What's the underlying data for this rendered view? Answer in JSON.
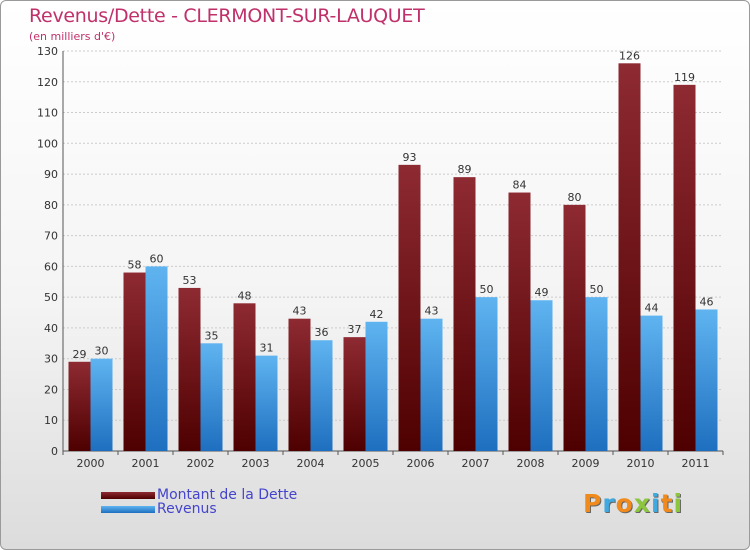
{
  "colors": {
    "debt": "#7a1c22",
    "revenue": "#4aa0e6",
    "title": "#c0306a",
    "legend_text": "#4444cc",
    "axis_text": "#333333"
  },
  "header": {
    "title": "Revenus/Dette - CLERMONT-SUR-LAUQUET",
    "subtitle": "(en milliers d'€)"
  },
  "legend": {
    "debt_label": "Montant de la Dette",
    "revenue_label": "Revenus"
  },
  "logo": {
    "text": "Proxiti"
  },
  "chart_data": {
    "type": "bar",
    "title": "Revenus/Dette - CLERMONT-SUR-LAUQUET",
    "ylabel": "(en milliers d'€)",
    "xlabel": "",
    "categories": [
      "2000",
      "2001",
      "2002",
      "2003",
      "2004",
      "2005",
      "2006",
      "2007",
      "2008",
      "2009",
      "2010",
      "2011"
    ],
    "series": [
      {
        "name": "Montant de la Dette",
        "values": [
          29,
          58,
          53,
          48,
          43,
          37,
          93,
          89,
          84,
          80,
          126,
          119
        ]
      },
      {
        "name": "Revenus",
        "values": [
          30,
          60,
          35,
          31,
          36,
          42,
          43,
          50,
          49,
          50,
          44,
          46
        ]
      }
    ],
    "ylim": [
      0,
      130
    ],
    "yticks": [
      0,
      10,
      20,
      30,
      40,
      50,
      60,
      70,
      80,
      90,
      100,
      110,
      120,
      130
    ],
    "grid": true,
    "legend_position": "bottom-left"
  }
}
